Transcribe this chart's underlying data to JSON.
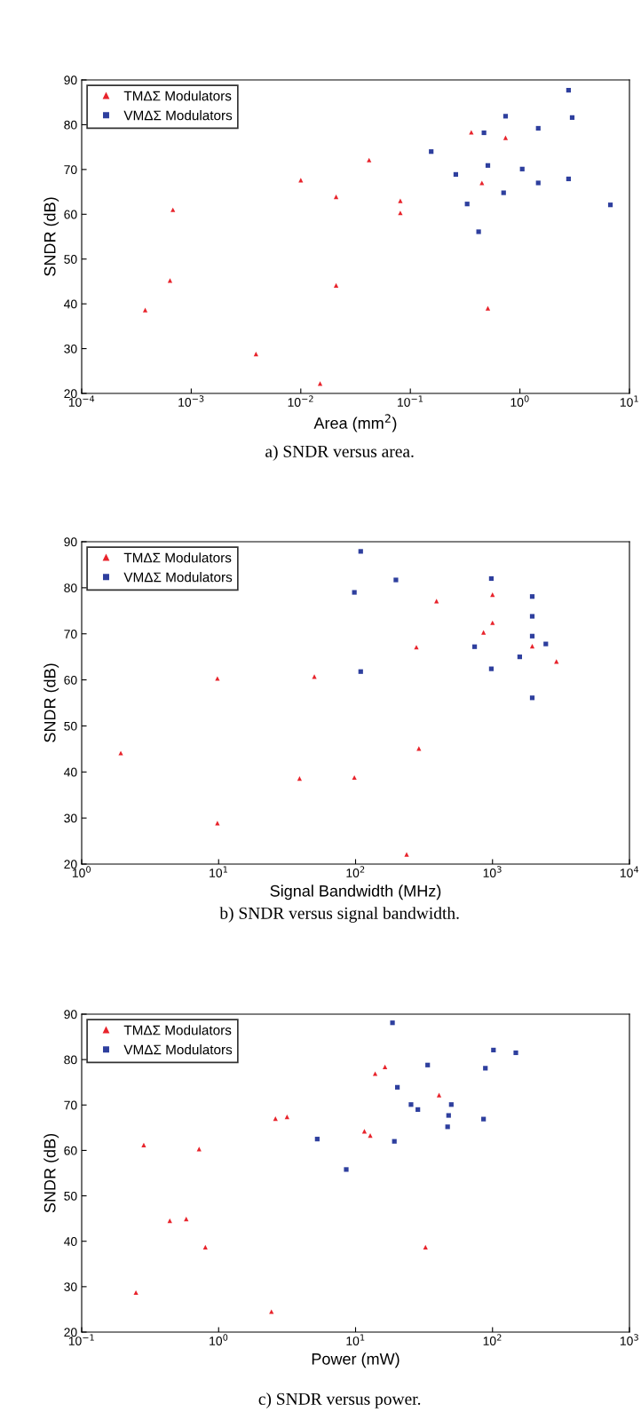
{
  "chart_data": [
    {
      "type": "scatter",
      "xlabel": "Area (mm$^{2}$)",
      "ylabel": "SNDR (dB)",
      "log": "x",
      "xlim": [
        0.0001,
        10
      ],
      "xticks": [
        {
          "value": 0.0001,
          "label": "10$^{−4}$"
        },
        {
          "value": 0.001,
          "label": "10$^{−3}$"
        },
        {
          "value": 0.01,
          "label": "10$^{−2}$"
        },
        {
          "value": 0.1,
          "label": "10$^{−1}$"
        },
        {
          "value": 1,
          "label": "10$^{0}$"
        },
        {
          "value": 10,
          "label": "10$^{1}$"
        }
      ],
      "ylim": [
        20,
        90
      ],
      "yticks": [
        20,
        30,
        40,
        50,
        60,
        70,
        80,
        90
      ],
      "legend": "top left",
      "annotations": [
        "a) SNDR versus area."
      ],
      "series": [
        {
          "name": "TMΔΣ Modulators",
          "color": "#e8242c",
          "marker": "triangle",
          "x": [
            0.00038,
            0.00064,
            0.00068,
            0.0039,
            0.01,
            0.015,
            0.021,
            0.021,
            0.042,
            0.081,
            0.081,
            0.36,
            0.45,
            0.51,
            0.74
          ],
          "values": [
            38.6,
            45.2,
            61,
            28.8,
            67.6,
            22.2,
            63.9,
            44.1,
            72.1,
            63,
            60.3,
            78.3,
            67,
            39,
            77.1
          ]
        },
        {
          "name": "VMΔΣ Modulators",
          "color": "#2e3f9e",
          "marker": "square",
          "x": [
            0.155,
            0.26,
            0.33,
            0.42,
            0.47,
            0.51,
            0.74,
            0.71,
            1.05,
            1.47,
            1.47,
            2.78,
            3.0,
            2.78,
            6.7
          ],
          "values": [
            74,
            68.9,
            62.3,
            56.1,
            78.2,
            70.9,
            81.9,
            64.8,
            70.1,
            79.2,
            67,
            87.7,
            81.6,
            67.9,
            62.1
          ]
        }
      ]
    },
    {
      "type": "scatter",
      "xlabel": "Signal Bandwidth (MHz)",
      "ylabel": "SNDR (dB)",
      "log": "x",
      "xlim": [
        1,
        10000
      ],
      "xticks": [
        {
          "value": 1,
          "label": "10$^{0}$"
        },
        {
          "value": 10,
          "label": "10$^{1}$"
        },
        {
          "value": 100,
          "label": "10$^{2}$"
        },
        {
          "value": 1000,
          "label": "10$^{3}$"
        },
        {
          "value": 10000,
          "label": "10$^{4}$"
        }
      ],
      "ylim": [
        20,
        90
      ],
      "yticks": [
        20,
        30,
        40,
        50,
        60,
        70,
        80,
        90
      ],
      "legend": "top left",
      "annotations": [
        "b) SNDR versus signal bandwidth."
      ],
      "series": [
        {
          "name": "TMΔΣ Modulators",
          "color": "#e8242c",
          "marker": "triangle",
          "x": [
            1.93,
            9.8,
            9.8,
            39,
            50,
            98,
            236,
            278,
            290,
            390,
            1000,
            1000,
            860,
            1950,
            2930
          ],
          "values": [
            44.1,
            60.3,
            28.9,
            38.6,
            60.7,
            38.8,
            22.1,
            67.1,
            45.1,
            77.1,
            78.5,
            72.4,
            70.3,
            67.3,
            64
          ]
        },
        {
          "name": "VMΔΣ Modulators",
          "color": "#2e3f9e",
          "marker": "square",
          "x": [
            109,
            98,
            109,
            197,
            740,
            980,
            980,
            1580,
            1950,
            1950,
            1950,
            1950,
            2450
          ],
          "values": [
            87.9,
            79,
            61.8,
            81.7,
            67.2,
            82,
            62.4,
            65,
            78.1,
            73.8,
            69.5,
            56.1,
            67.8
          ]
        }
      ]
    },
    {
      "type": "scatter",
      "xlabel": "Power (mW)",
      "ylabel": "SNDR (dB)",
      "log": "x",
      "xlim": [
        0.1,
        1000
      ],
      "xticks": [
        {
          "value": 0.1,
          "label": "10$^{−1}$"
        },
        {
          "value": 1,
          "label": "10$^{0}$"
        },
        {
          "value": 10,
          "label": "10$^{1}$"
        },
        {
          "value": 100,
          "label": "10$^{2}$"
        },
        {
          "value": 1000,
          "label": "10$^{3}$"
        }
      ],
      "ylim": [
        20,
        90
      ],
      "yticks": [
        20,
        30,
        40,
        50,
        60,
        70,
        80,
        90
      ],
      "legend": "top left",
      "annotations": [
        "c) SNDR versus power."
      ],
      "series": [
        {
          "name": "TMΔΣ Modulators",
          "color": "#e8242c",
          "marker": "triangle",
          "x": [
            0.284,
            0.72,
            0.44,
            0.58,
            0.8,
            0.249,
            2.43,
            2.6,
            3.16,
            13.9,
            16.4,
            11.6,
            12.8,
            40.7,
            32.4
          ],
          "values": [
            61.2,
            60.3,
            44.5,
            44.9,
            38.7,
            28.7,
            24.5,
            67,
            67.4,
            76.9,
            78.4,
            64.2,
            63.3,
            72.2,
            38.7
          ]
        },
        {
          "name": "VMΔΣ Modulators",
          "color": "#2e3f9e",
          "marker": "square",
          "x": [
            18.6,
            33.6,
            20.2,
            25.4,
            28.5,
            5.25,
            8.55,
            19.2,
            50,
            47.8,
            47,
            101.6,
            88.7,
            148,
            86
          ],
          "values": [
            88.1,
            78.8,
            73.9,
            70.1,
            69,
            62.5,
            55.8,
            62,
            70.1,
            67.7,
            65.2,
            82.1,
            78.1,
            81.5,
            66.9
          ]
        }
      ]
    }
  ]
}
